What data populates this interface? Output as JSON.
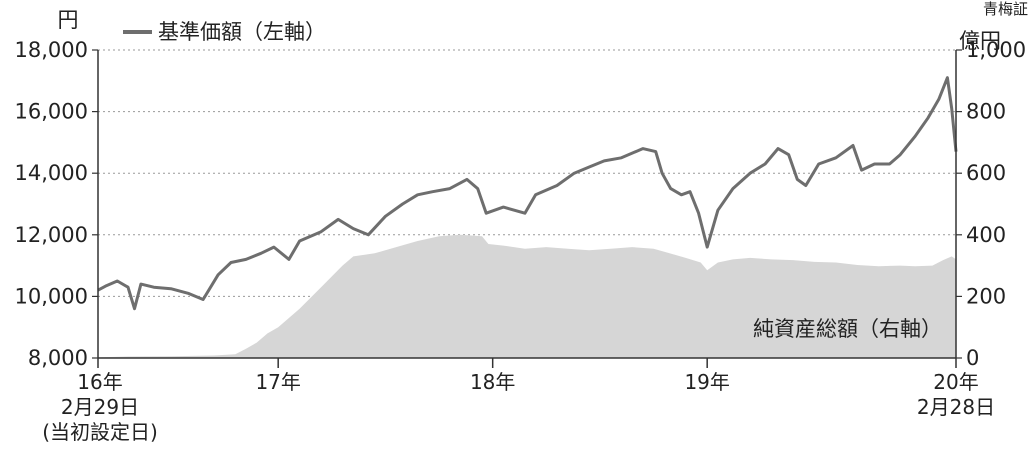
{
  "chart_data": {
    "type": "line",
    "left_axis_unit": "円",
    "right_axis_unit": "億円",
    "left_axis_ticks": [
      "8,000",
      "10,000",
      "12,000",
      "14,000",
      "16,000",
      "18,000"
    ],
    "right_axis_ticks": [
      "0",
      "200",
      "400",
      "600",
      "800",
      "1,000"
    ],
    "left_ylim": [
      8000,
      18000
    ],
    "right_ylim": [
      0,
      1000
    ],
    "x_range": [
      2016.16,
      2020.16
    ],
    "x_tick_labels": [
      {
        "x": 2016.16,
        "lines": [
          "16年",
          "2月29日",
          "(当初設定日)"
        ]
      },
      {
        "x": 2017.0,
        "lines": [
          "17年"
        ]
      },
      {
        "x": 2018.0,
        "lines": [
          "18年"
        ]
      },
      {
        "x": 2019.0,
        "lines": [
          "19年"
        ]
      },
      {
        "x": 2020.16,
        "lines": [
          "20年",
          "2月28日"
        ]
      }
    ],
    "x_dividers": [
      2016.16,
      2017.0,
      2018.0,
      2019.0,
      2020.16
    ],
    "grid": true,
    "series": [
      {
        "name": "基準価額（左軸）",
        "kind": "line",
        "axis": "left",
        "color": "#6e6e6e",
        "points": [
          [
            2016.16,
            10200
          ],
          [
            2016.2,
            10350
          ],
          [
            2016.25,
            10500
          ],
          [
            2016.3,
            10300
          ],
          [
            2016.33,
            9600
          ],
          [
            2016.36,
            10400
          ],
          [
            2016.42,
            10300
          ],
          [
            2016.5,
            10250
          ],
          [
            2016.58,
            10100
          ],
          [
            2016.65,
            9900
          ],
          [
            2016.72,
            10700
          ],
          [
            2016.78,
            11100
          ],
          [
            2016.85,
            11200
          ],
          [
            2016.92,
            11400
          ],
          [
            2016.98,
            11600
          ],
          [
            2017.05,
            11200
          ],
          [
            2017.1,
            11800
          ],
          [
            2017.2,
            12100
          ],
          [
            2017.28,
            12500
          ],
          [
            2017.35,
            12200
          ],
          [
            2017.42,
            12000
          ],
          [
            2017.5,
            12600
          ],
          [
            2017.58,
            13000
          ],
          [
            2017.65,
            13300
          ],
          [
            2017.72,
            13400
          ],
          [
            2017.8,
            13500
          ],
          [
            2017.88,
            13800
          ],
          [
            2017.93,
            13500
          ],
          [
            2017.97,
            12700
          ],
          [
            2018.05,
            12900
          ],
          [
            2018.15,
            12700
          ],
          [
            2018.2,
            13300
          ],
          [
            2018.3,
            13600
          ],
          [
            2018.38,
            14000
          ],
          [
            2018.45,
            14200
          ],
          [
            2018.52,
            14400
          ],
          [
            2018.6,
            14500
          ],
          [
            2018.7,
            14800
          ],
          [
            2018.76,
            14700
          ],
          [
            2018.79,
            14000
          ],
          [
            2018.83,
            13500
          ],
          [
            2018.88,
            13300
          ],
          [
            2018.92,
            13400
          ],
          [
            2018.96,
            12700
          ],
          [
            2019.0,
            11600
          ],
          [
            2019.05,
            12800
          ],
          [
            2019.12,
            13500
          ],
          [
            2019.2,
            14000
          ],
          [
            2019.27,
            14300
          ],
          [
            2019.33,
            14800
          ],
          [
            2019.38,
            14600
          ],
          [
            2019.42,
            13800
          ],
          [
            2019.46,
            13600
          ],
          [
            2019.52,
            14300
          ],
          [
            2019.6,
            14500
          ],
          [
            2019.68,
            14900
          ],
          [
            2019.72,
            14100
          ],
          [
            2019.78,
            14300
          ],
          [
            2019.85,
            14300
          ],
          [
            2019.9,
            14600
          ],
          [
            2019.97,
            15200
          ],
          [
            2020.03,
            15800
          ],
          [
            2020.08,
            16400
          ],
          [
            2020.12,
            17100
          ],
          [
            2020.14,
            16100
          ],
          [
            2020.16,
            14700
          ]
        ]
      },
      {
        "name": "純資産総額（右軸）",
        "kind": "area",
        "axis": "right",
        "color": "#d6d6d6",
        "points": [
          [
            2016.16,
            2
          ],
          [
            2016.3,
            5
          ],
          [
            2016.5,
            6
          ],
          [
            2016.7,
            8
          ],
          [
            2016.8,
            12
          ],
          [
            2016.85,
            30
          ],
          [
            2016.9,
            50
          ],
          [
            2016.95,
            80
          ],
          [
            2017.0,
            100
          ],
          [
            2017.1,
            160
          ],
          [
            2017.2,
            230
          ],
          [
            2017.3,
            300
          ],
          [
            2017.35,
            330
          ],
          [
            2017.45,
            340
          ],
          [
            2017.55,
            360
          ],
          [
            2017.65,
            380
          ],
          [
            2017.75,
            395
          ],
          [
            2017.85,
            400
          ],
          [
            2017.95,
            395
          ],
          [
            2017.98,
            370
          ],
          [
            2018.05,
            365
          ],
          [
            2018.15,
            355
          ],
          [
            2018.25,
            360
          ],
          [
            2018.35,
            355
          ],
          [
            2018.45,
            350
          ],
          [
            2018.55,
            355
          ],
          [
            2018.65,
            360
          ],
          [
            2018.75,
            355
          ],
          [
            2018.8,
            345
          ],
          [
            2018.9,
            325
          ],
          [
            2018.97,
            310
          ],
          [
            2019.0,
            285
          ],
          [
            2019.05,
            310
          ],
          [
            2019.12,
            320
          ],
          [
            2019.2,
            325
          ],
          [
            2019.3,
            320
          ],
          [
            2019.4,
            318
          ],
          [
            2019.5,
            312
          ],
          [
            2019.6,
            310
          ],
          [
            2019.7,
            302
          ],
          [
            2019.8,
            298
          ],
          [
            2019.9,
            300
          ],
          [
            2019.97,
            298
          ],
          [
            2020.05,
            300
          ],
          [
            2020.1,
            318
          ],
          [
            2020.14,
            330
          ],
          [
            2020.16,
            320
          ]
        ]
      }
    ]
  },
  "corner_label": "青梅証"
}
